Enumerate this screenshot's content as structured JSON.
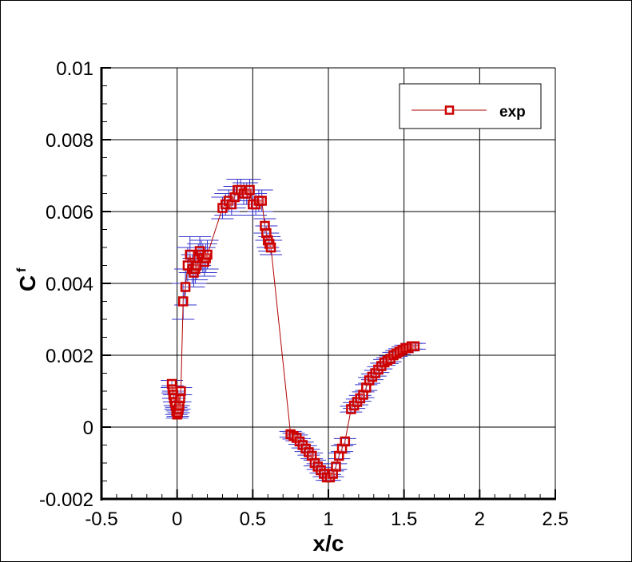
{
  "chart_data": {
    "type": "scatter",
    "title": "",
    "xlabel": "x/c",
    "ylabel": "C_f",
    "ylabel_main": "C",
    "ylabel_sub": "f",
    "xlim": [
      -0.5,
      2.5
    ],
    "ylim": [
      -0.002,
      0.01
    ],
    "grid": true,
    "legend_position": "upper right",
    "x_ticks": [
      -0.5,
      0,
      0.5,
      1,
      1.5,
      2,
      2.5
    ],
    "x_tick_labels": [
      "-0.5",
      "0",
      "0.5",
      "1",
      "1.5",
      "2",
      "2.5"
    ],
    "y_ticks": [
      -0.002,
      0,
      0.002,
      0.004,
      0.006,
      0.008,
      0.01
    ],
    "y_tick_labels": [
      "-0.002",
      "0",
      "0.002",
      "0.004",
      "0.006",
      "0.008",
      "0.01"
    ],
    "series": [
      {
        "name": "exp",
        "line_color": "#b00000",
        "marker": "square",
        "marker_color": "#cc0000",
        "errorbar_color": "#3333cc",
        "x": [
          -0.035,
          -0.03,
          -0.025,
          -0.02,
          -0.015,
          -0.01,
          -0.005,
          0.0,
          0.005,
          0.01,
          0.015,
          0.02,
          0.025,
          0.04,
          0.055,
          0.07,
          0.085,
          0.1,
          0.11,
          0.12,
          0.13,
          0.14,
          0.15,
          0.16,
          0.17,
          0.18,
          0.19,
          0.2,
          0.3,
          0.32,
          0.34,
          0.36,
          0.38,
          0.4,
          0.42,
          0.44,
          0.46,
          0.48,
          0.5,
          0.52,
          0.54,
          0.56,
          0.58,
          0.59,
          0.6,
          0.61,
          0.62,
          0.75,
          0.77,
          0.79,
          0.81,
          0.83,
          0.85,
          0.87,
          0.89,
          0.91,
          0.93,
          0.95,
          0.97,
          0.99,
          1.01,
          1.03,
          1.05,
          1.07,
          1.09,
          1.11,
          1.15,
          1.17,
          1.19,
          1.21,
          1.23,
          1.25,
          1.27,
          1.29,
          1.31,
          1.33,
          1.35,
          1.37,
          1.39,
          1.41,
          1.43,
          1.45,
          1.47,
          1.49,
          1.51,
          1.53,
          1.55,
          1.57
        ],
        "y": [
          0.0012,
          0.00105,
          0.0009,
          0.0008,
          0.0007,
          0.0006,
          0.00045,
          0.00035,
          0.0004,
          0.0005,
          0.0006,
          0.0008,
          0.001,
          0.0035,
          0.0039,
          0.0045,
          0.0048,
          0.0044,
          0.0043,
          0.0044,
          0.0045,
          0.0047,
          0.0049,
          0.0048,
          0.0047,
          0.0046,
          0.0047,
          0.0048,
          0.0061,
          0.0062,
          0.0063,
          0.0062,
          0.0064,
          0.0066,
          0.0066,
          0.0065,
          0.0065,
          0.0066,
          0.0062,
          0.0062,
          0.0063,
          0.0063,
          0.0056,
          0.0054,
          0.0052,
          0.0051,
          0.005,
          -0.0002,
          -0.00025,
          -0.0003,
          -0.0004,
          -0.0005,
          -0.0006,
          -0.0007,
          -0.0008,
          -0.001,
          -0.0011,
          -0.0012,
          -0.0013,
          -0.0014,
          -0.0014,
          -0.0013,
          -0.0011,
          -0.0008,
          -0.0006,
          -0.0004,
          0.0005,
          0.0006,
          0.0007,
          0.0008,
          0.0009,
          0.0011,
          0.0013,
          0.0014,
          0.0015,
          0.0016,
          0.0017,
          0.0018,
          0.00185,
          0.0019,
          0.002,
          0.00205,
          0.0021,
          0.00215,
          0.0022,
          0.0022,
          0.00225,
          0.00225
        ],
        "yerr": [
          0.0001,
          0.0001,
          0.0001,
          0.0001,
          0.0001,
          0.0001,
          0.0001,
          0.0001,
          0.0001,
          0.0001,
          0.0001,
          0.0001,
          0.0001,
          0.0005,
          0.0005,
          0.0005,
          0.0005,
          0.0004,
          0.0004,
          0.0004,
          0.0004,
          0.0004,
          0.0004,
          0.0004,
          0.0004,
          0.0004,
          0.0004,
          0.0004,
          0.0003,
          0.0003,
          0.0003,
          0.0003,
          0.0003,
          0.0003,
          0.0003,
          0.0003,
          0.0003,
          0.0003,
          0.0003,
          0.0003,
          0.0003,
          0.0003,
          0.0002,
          0.0002,
          0.0002,
          0.0002,
          0.0002,
          8e-05,
          8e-05,
          8e-05,
          8e-05,
          8e-05,
          8e-05,
          8e-05,
          8e-05,
          8e-05,
          8e-05,
          8e-05,
          8e-05,
          8e-05,
          8e-05,
          8e-05,
          8e-05,
          8e-05,
          8e-05,
          8e-05,
          8e-05,
          8e-05,
          8e-05,
          8e-05,
          8e-05,
          8e-05,
          8e-05,
          8e-05,
          8e-05,
          8e-05,
          8e-05,
          8e-05,
          8e-05,
          8e-05,
          8e-05,
          8e-05,
          8e-05,
          8e-05,
          8e-05,
          8e-05,
          8e-05,
          8e-05
        ]
      }
    ]
  },
  "legend": {
    "entries": [
      {
        "label": "exp",
        "line_color": "#b00000",
        "marker": "square"
      }
    ]
  },
  "axes": {
    "x_title": "x/c",
    "y_title_main": "C",
    "y_title_sub": "f"
  }
}
